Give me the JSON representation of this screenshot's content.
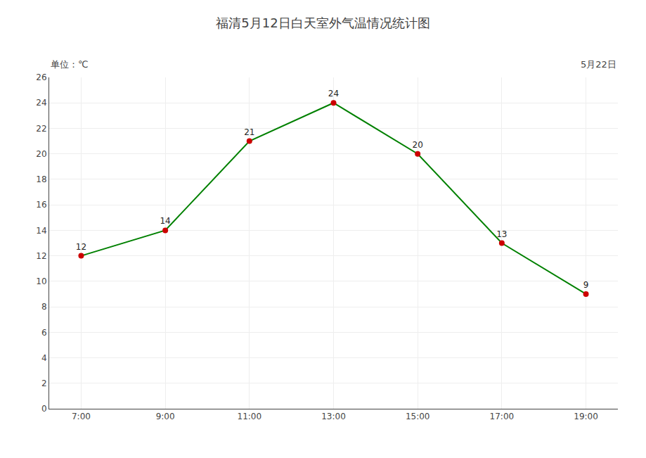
{
  "chart_data": {
    "type": "line",
    "title": "福清5月12日白天室外气温情况统计图",
    "annotations": [
      "单位：℃",
      "5月22日"
    ],
    "categories": [
      "7:00",
      "9:00",
      "11:00",
      "13:00",
      "15:00",
      "17:00",
      "19:00"
    ],
    "values": [
      12,
      14,
      21,
      24,
      20,
      13,
      9
    ],
    "color": "#008000",
    "colors": [
      "#cc0000",
      "#cc0000",
      "#cc0000",
      "#cc0000",
      "#cc0000",
      "#cc0000",
      "#cc0000"
    ],
    "marker": "circle",
    "ylim": [
      0,
      26
    ],
    "yticks": [
      0,
      2,
      4,
      6,
      8,
      10,
      12,
      14,
      16,
      18,
      20,
      22,
      24,
      26
    ],
    "grid": true,
    "data_labels": true
  }
}
